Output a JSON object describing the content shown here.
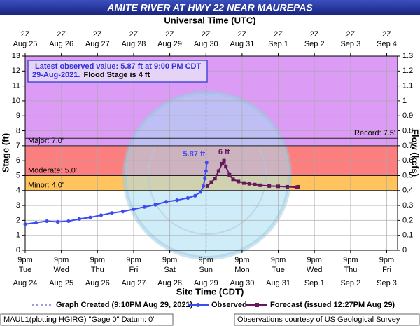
{
  "chart_data": {
    "type": "line",
    "title": "AMITE RIVER AT HWY 22 NEAR MAUREPAS",
    "x2_title": "Universal Time (UTC)",
    "x_title": "Site Time (CDT)",
    "y_title": "Stage (ft)",
    "y2_title": "Flow (kcfs)",
    "xlim": [
      0,
      10.3
    ],
    "xticks": [
      {
        "value": 0,
        "label": "9pm",
        "weekday": "Tue",
        "date": "Aug 24"
      },
      {
        "value": 1,
        "label": "9pm",
        "weekday": "Wed",
        "date": "Aug 25"
      },
      {
        "value": 2,
        "label": "9pm",
        "weekday": "Thu",
        "date": "Aug 26"
      },
      {
        "value": 3,
        "label": "9pm",
        "weekday": "Fri",
        "date": "Aug 27"
      },
      {
        "value": 4,
        "label": "9pm",
        "weekday": "Sat",
        "date": "Aug 28"
      },
      {
        "value": 5,
        "label": "9pm",
        "weekday": "Sun",
        "date": "Aug 29"
      },
      {
        "value": 6,
        "label": "9pm",
        "weekday": "Mon",
        "date": "Aug 30"
      },
      {
        "value": 7,
        "label": "9pm",
        "weekday": "Tue",
        "date": "Aug 31"
      },
      {
        "value": 8,
        "label": "9pm",
        "weekday": "Wed",
        "date": "Sep 1"
      },
      {
        "value": 9,
        "label": "9pm",
        "weekday": "Thu",
        "date": "Sep 2"
      },
      {
        "value": 10,
        "label": "9pm",
        "weekday": "Fri",
        "date": "Sep 3"
      }
    ],
    "x2ticks": [
      {
        "value": 0,
        "label": "2Z",
        "date": "Aug 25"
      },
      {
        "value": 1,
        "label": "2Z",
        "date": "Aug 26"
      },
      {
        "value": 2,
        "label": "2Z",
        "date": "Aug 27"
      },
      {
        "value": 3,
        "label": "2Z",
        "date": "Aug 28"
      },
      {
        "value": 4,
        "label": "2Z",
        "date": "Aug 29"
      },
      {
        "value": 5,
        "label": "2Z",
        "date": "Aug 30"
      },
      {
        "value": 6,
        "label": "2Z",
        "date": "Aug 31"
      },
      {
        "value": 7,
        "label": "2Z",
        "date": "Sep 1"
      },
      {
        "value": 8,
        "label": "2Z",
        "date": "Sep 2"
      },
      {
        "value": 9,
        "label": "2Z",
        "date": "Sep 3"
      },
      {
        "value": 10,
        "label": "2Z",
        "date": "Sep 4"
      }
    ],
    "ylim": [
      0,
      13
    ],
    "yticks": [
      0,
      1,
      2,
      3,
      4,
      5,
      6,
      7,
      8,
      9,
      10,
      11,
      12,
      13
    ],
    "y2lim": [
      0,
      1.3
    ],
    "y2ticks": [
      0,
      0.1,
      0.2,
      0.3,
      0.4,
      0.5,
      0.6,
      0.7,
      0.8,
      0.9,
      1,
      1.1,
      1.2,
      1.3
    ],
    "grid": true,
    "flood_categories": [
      {
        "label": "Minor: 4.0'",
        "value": 4,
        "color": "#ffc45e"
      },
      {
        "label": "Moderate: 5.0'",
        "value": 5,
        "color": "#fb7f7f"
      },
      {
        "label": "Major: 7.0'",
        "value": 7,
        "color": "#dc9cf6"
      }
    ],
    "record": {
      "label": "Record: 7.5'",
      "value": 7.5
    },
    "info": [
      "Latest observed value: 5.87 ft at 9:00 PM CDT",
      "29-Aug-2021.",
      "Flood Stage is 4 ft"
    ],
    "created": {
      "x": 5.007,
      "label": "Graph Created (9:10PM Aug 29, 2021)"
    },
    "series": [
      {
        "name": "Observed",
        "color": "#3c4cf0",
        "marker": "circle",
        "peak_label": "5.87 ft",
        "x": [
          0,
          0.3,
          0.6,
          0.9,
          1.2,
          1.5,
          1.8,
          2.1,
          2.4,
          2.7,
          3.0,
          3.3,
          3.6,
          3.9,
          4.2,
          4.5,
          4.7,
          4.85,
          4.93,
          4.97,
          5.0,
          5.02
        ],
        "values": [
          1.75,
          1.85,
          1.95,
          1.9,
          1.95,
          2.1,
          2.2,
          2.35,
          2.5,
          2.6,
          2.75,
          2.9,
          3.05,
          3.25,
          3.35,
          3.5,
          3.65,
          3.9,
          4.3,
          4.8,
          5.3,
          5.87
        ]
      },
      {
        "name": "Forecast (issued 12:27PM Aug 29)",
        "color": "#66185e",
        "marker": "square",
        "peak_label": "6 ft",
        "x": [
          5.04,
          5.15,
          5.25,
          5.35,
          5.45,
          5.5,
          5.55,
          5.65,
          5.75,
          5.9,
          6.05,
          6.2,
          6.35,
          6.5,
          6.75,
          7.0,
          7.25,
          7.5,
          7.55
        ],
        "values": [
          4.3,
          4.55,
          4.8,
          5.3,
          5.8,
          6.0,
          5.6,
          5.05,
          4.75,
          4.6,
          4.5,
          4.45,
          4.4,
          4.35,
          4.3,
          4.28,
          4.25,
          4.22,
          4.25
        ]
      }
    ],
    "footer": [
      "MAUL1(plotting HGIRG) \"Gage 0\" Datum: 0'",
      "Observations courtesy of US Geological Survey"
    ]
  }
}
